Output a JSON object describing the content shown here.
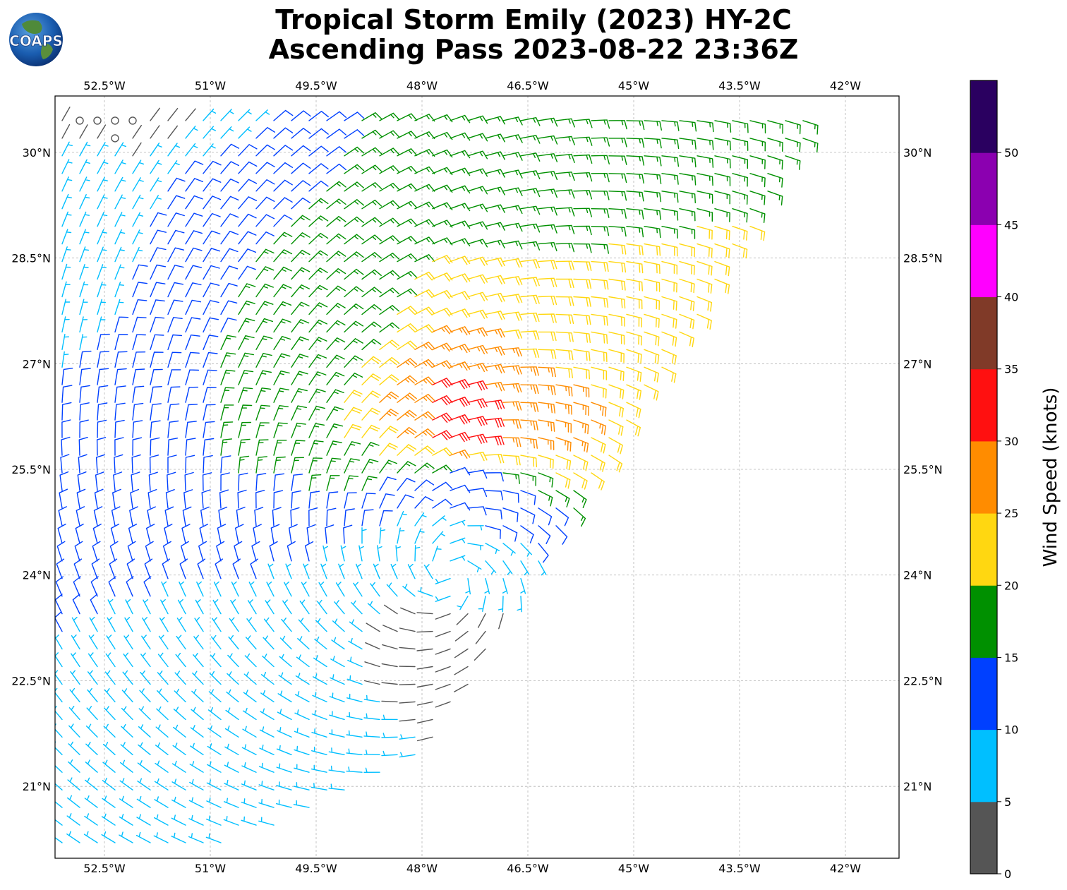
{
  "title_lines": [
    "Tropical Storm Emily (2023) HY-2C",
    "Ascending Pass 2023-08-22 23:36Z"
  ],
  "logo_text": "COAPS",
  "chart_data": {
    "type": "wind-barb map",
    "x_unit": "degrees longitude (negative = W)",
    "y_unit": "degrees latitude (N)",
    "xlim": [
      -53.2,
      -41.24
    ],
    "ylim": [
      19.98,
      30.8
    ],
    "grid": true,
    "x_ticks": [
      {
        "value": -52.5,
        "label": "52.5°W"
      },
      {
        "value": -51.0,
        "label": "51°W"
      },
      {
        "value": -49.5,
        "label": "49.5°W"
      },
      {
        "value": -48.0,
        "label": "48°W"
      },
      {
        "value": -46.5,
        "label": "46.5°W"
      },
      {
        "value": -45.0,
        "label": "45°W"
      },
      {
        "value": -43.5,
        "label": "43.5°W"
      },
      {
        "value": -42.0,
        "label": "42°W"
      }
    ],
    "y_ticks": [
      {
        "value": 30.0,
        "label": "30°N"
      },
      {
        "value": 28.5,
        "label": "28.5°N"
      },
      {
        "value": 27.0,
        "label": "27°N"
      },
      {
        "value": 25.5,
        "label": "25.5°N"
      },
      {
        "value": 24.0,
        "label": "24°N"
      },
      {
        "value": 22.5,
        "label": "22.5°N"
      },
      {
        "value": 21.0,
        "label": "21°N"
      }
    ],
    "storm_center": {
      "lon": -47.6,
      "lat": 24.0
    },
    "swath": {
      "east_edge_top_lon": -42.3,
      "east_edge_top_lat": 30.6,
      "east_edge_bottom_lon": -48.0,
      "east_edge_bottom_lat": 21.4
    },
    "colorbar": {
      "label": "Wind Speed (knots)",
      "range": [
        0,
        55
      ],
      "tick_values": [
        0,
        5,
        10,
        15,
        20,
        25,
        30,
        35,
        40,
        45,
        50
      ],
      "bins": [
        {
          "from": 0,
          "to": 5,
          "color": "#555555"
        },
        {
          "from": 5,
          "to": 10,
          "color": "#00bfff"
        },
        {
          "from": 10,
          "to": 15,
          "color": "#0040ff"
        },
        {
          "from": 15,
          "to": 20,
          "color": "#009000"
        },
        {
          "from": 20,
          "to": 25,
          "color": "#ffd711"
        },
        {
          "from": 25,
          "to": 30,
          "color": "#ff8c00"
        },
        {
          "from": 30,
          "to": 35,
          "color": "#ff1010"
        },
        {
          "from": 35,
          "to": 40,
          "color": "#803a28"
        },
        {
          "from": 40,
          "to": 45,
          "color": "#ff00ff"
        },
        {
          "from": 45,
          "to": 50,
          "color": "#8b00b0"
        },
        {
          "from": 50,
          "to": 55,
          "color": "#2a0060"
        }
      ]
    },
    "wind_field_samples": [
      {
        "lon": -52.4,
        "lat": 30.5,
        "speed_kt": 2
      },
      {
        "lon": -52.5,
        "lat": 29.5,
        "speed_kt": 7
      },
      {
        "lon": -51.2,
        "lat": 29.0,
        "speed_kt": 12
      },
      {
        "lon": -49.6,
        "lat": 28.0,
        "speed_kt": 17
      },
      {
        "lon": -46.4,
        "lat": 29.6,
        "speed_kt": 17
      },
      {
        "lon": -46.1,
        "lat": 27.6,
        "speed_kt": 22
      },
      {
        "lon": -46.6,
        "lat": 26.6,
        "speed_kt": 27
      },
      {
        "lon": -47.4,
        "lat": 26.2,
        "speed_kt": 32
      },
      {
        "lon": -47.3,
        "lat": 25.1,
        "speed_kt": 12
      },
      {
        "lon": -47.5,
        "lat": 24.3,
        "speed_kt": 7
      },
      {
        "lon": -47.6,
        "lat": 23.1,
        "speed_kt": 3
      },
      {
        "lon": -50.0,
        "lat": 21.6,
        "speed_kt": 8
      }
    ]
  }
}
